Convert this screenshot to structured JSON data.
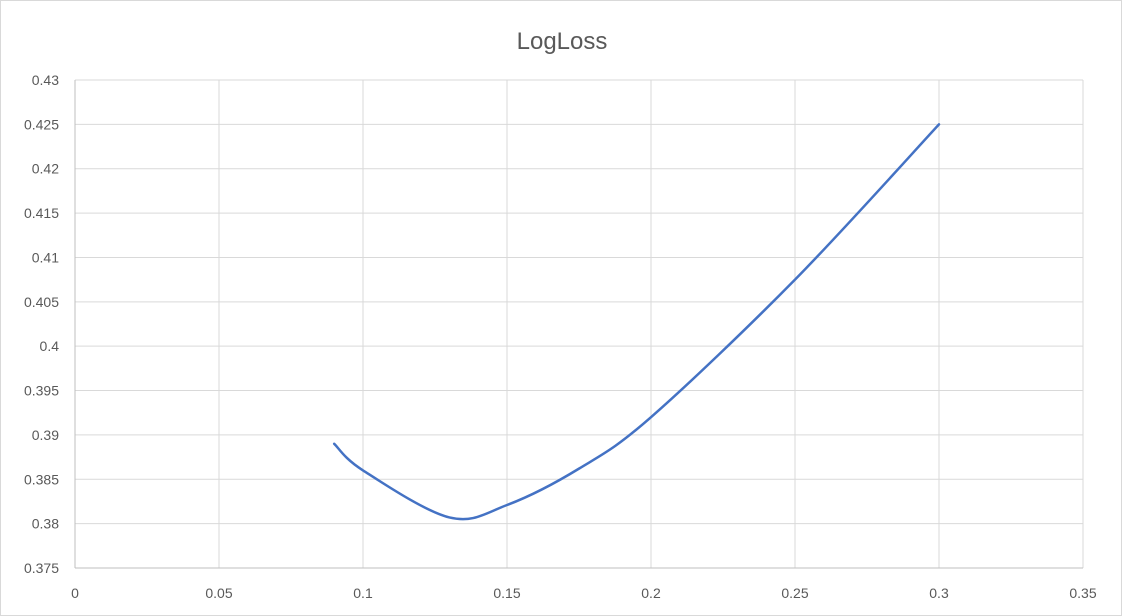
{
  "chart_data": {
    "type": "line",
    "title": "LogLoss",
    "xlabel": "",
    "ylabel": "",
    "xlim": [
      0,
      0.35
    ],
    "ylim": [
      0.375,
      0.43
    ],
    "x_ticks": [
      "0",
      "0.05",
      "0.1",
      "0.15",
      "0.2",
      "0.25",
      "0.3",
      "0.35"
    ],
    "y_ticks": [
      "0.375",
      "0.38",
      "0.385",
      "0.39",
      "0.395",
      "0.4",
      "0.405",
      "0.41",
      "0.415",
      "0.42",
      "0.425",
      "0.43"
    ],
    "grid": true,
    "legend": "none",
    "series": [
      {
        "color": "#4472c4",
        "smooth": true,
        "x": [
          0.09,
          0.1,
          0.13,
          0.15,
          0.175,
          0.2,
          0.25,
          0.3
        ],
        "y": [
          0.389,
          0.386,
          0.3807,
          0.3821,
          0.3862,
          0.392,
          0.4075,
          0.425
        ]
      }
    ]
  }
}
